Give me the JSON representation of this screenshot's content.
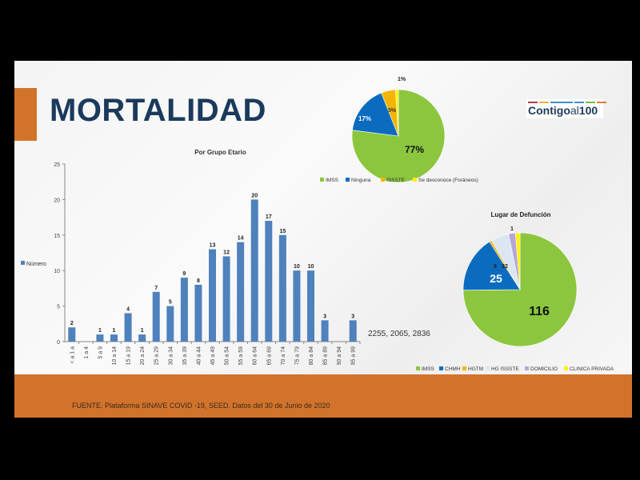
{
  "slide": {
    "title": "MORTALIDAD",
    "logo": {
      "text_main": "Contigo",
      "text_al": "al",
      "text_num": "100",
      "stripe_colors": [
        "#b5394a",
        "#e8b23a",
        "#3b8fd0",
        "#3b8fd0",
        "#7ab648",
        "#e07a3a"
      ]
    },
    "source": "FUENTE. Plataforma SINAVE COVID -19, SEED. Datos del 30 de Junio de 2020",
    "extra_text": "2255, 2065, 2836",
    "colors": {
      "accent": "#d2732c",
      "title": "#1b3a5c",
      "bar": "#4f81bd"
    }
  },
  "chart_data": [
    {
      "type": "bar",
      "title": "Por Grupo Etario",
      "legend": [
        "Número"
      ],
      "legend_position": "left",
      "categories": [
        "< a 1 a",
        "1 a 4",
        "5 a 9",
        "10 a 14",
        "15 a 19",
        "20 a 24",
        "25 a 29",
        "30 a 34",
        "35 a 39",
        "40 a 44",
        "45 a 49",
        "50 a 54",
        "55 a 59",
        "60 a 64",
        "65 a 69",
        "70 a 74",
        "75 a 79",
        "80 a 84",
        "85 a 89",
        "90 a 94",
        "95 a 99"
      ],
      "values": [
        2,
        0,
        1,
        1,
        4,
        1,
        7,
        5,
        9,
        8,
        13,
        12,
        14,
        20,
        17,
        15,
        10,
        10,
        3,
        0,
        3
      ],
      "data_labels": [
        "2",
        "",
        "1",
        "1",
        "4",
        "1",
        "7",
        "5",
        "9",
        "8",
        "13",
        "12",
        "14",
        "20",
        "17",
        "15",
        "10",
        "10",
        "3",
        "",
        "3"
      ],
      "ylim": [
        0,
        25
      ],
      "yticks": [
        0,
        5,
        10,
        15,
        20,
        25
      ],
      "grid": false,
      "color": "#4f81bd"
    },
    {
      "type": "pie",
      "labels": [
        "IMSS",
        "Ninguna",
        "ISSSTE",
        "Se desconoce (Foráneos)"
      ],
      "values": [
        77,
        17,
        5,
        1
      ],
      "data_labels": [
        "77%",
        "17%",
        "5%",
        "1%"
      ],
      "colors": [
        "#8cc63f",
        "#0b6cbf",
        "#f5b400",
        "#fff200"
      ],
      "legend_position": "bottom"
    },
    {
      "type": "pie",
      "title": "Lugar de Defunción",
      "labels": [
        "IMSS",
        "CHMH",
        "HGTM",
        "HG ISSSTE",
        "DOMICILIO",
        "CLINICA PRIVADA"
      ],
      "values": [
        116,
        25,
        1,
        8,
        3,
        2
      ],
      "data_labels": [
        "116",
        "25",
        "1",
        "8",
        "3",
        "2"
      ],
      "colors": [
        "#8cc63f",
        "#0b6cbf",
        "#f5b400",
        "#dce6f2",
        "#b4a7d6",
        "#fff200"
      ],
      "legend_position": "bottom"
    }
  ]
}
